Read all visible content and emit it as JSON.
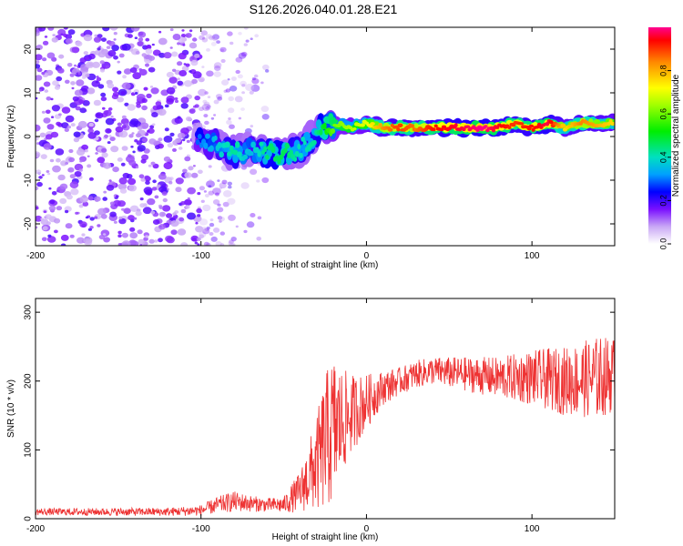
{
  "figure": {
    "title": "S126.2026.040.01.28.E21"
  },
  "chart_data": [
    {
      "type": "heatmap",
      "name": "spectrogram",
      "xlabel": "Height of straight line (km)",
      "ylabel": "Frequency (Hz)",
      "xlim": [
        -200,
        150
      ],
      "ylim": [
        -25,
        25
      ],
      "x_ticks": [
        -200,
        -100,
        0,
        100
      ],
      "x_tick_labels": [
        "-200",
        "-100",
        "0",
        "100"
      ],
      "y_ticks": [
        20,
        10,
        0,
        -10,
        -20
      ],
      "y_tick_labels": [
        "20",
        "10",
        "0",
        "-10",
        "-20"
      ],
      "colorbar": {
        "label": "Normalized spectral amplitude",
        "range": [
          0,
          1
        ],
        "ticks": [
          0.0,
          0.2,
          0.4,
          0.6,
          0.8
        ],
        "tick_labels": [
          "0.0",
          "0.2",
          "0.4",
          "0.6",
          "0.8"
        ]
      },
      "noise_region": {
        "x_range": [
          -200,
          -55
        ],
        "amplitude": [
          0.05,
          0.2
        ]
      },
      "ridge": [
        {
          "x": -100,
          "y": -1,
          "a": 0.25
        },
        {
          "x": -90,
          "y": -2,
          "a": 0.32
        },
        {
          "x": -80,
          "y": -4,
          "a": 0.38
        },
        {
          "x": -70,
          "y": -3,
          "a": 0.3
        },
        {
          "x": -60,
          "y": -4,
          "a": 0.4
        },
        {
          "x": -50,
          "y": -4,
          "a": 0.42
        },
        {
          "x": -40,
          "y": -3,
          "a": 0.35
        },
        {
          "x": -30,
          "y": 1,
          "a": 0.38
        },
        {
          "x": -20,
          "y": 3,
          "a": 0.55
        },
        {
          "x": -10,
          "y": 2,
          "a": 0.6
        },
        {
          "x": 0,
          "y": 3,
          "a": 0.65
        },
        {
          "x": 10,
          "y": 2,
          "a": 0.78
        },
        {
          "x": 20,
          "y": 2,
          "a": 0.85
        },
        {
          "x": 30,
          "y": 2,
          "a": 0.8
        },
        {
          "x": 40,
          "y": 2,
          "a": 0.88
        },
        {
          "x": 50,
          "y": 2,
          "a": 0.9
        },
        {
          "x": 60,
          "y": 2,
          "a": 0.92
        },
        {
          "x": 70,
          "y": 2,
          "a": 0.95
        },
        {
          "x": 80,
          "y": 2,
          "a": 0.9
        },
        {
          "x": 90,
          "y": 3,
          "a": 0.85
        },
        {
          "x": 100,
          "y": 2,
          "a": 0.88
        },
        {
          "x": 110,
          "y": 3,
          "a": 0.92
        },
        {
          "x": 120,
          "y": 2,
          "a": 0.7
        },
        {
          "x": 130,
          "y": 3,
          "a": 0.8
        },
        {
          "x": 140,
          "y": 3,
          "a": 0.75
        },
        {
          "x": 150,
          "y": 3,
          "a": 0.7
        }
      ]
    },
    {
      "type": "line",
      "name": "snr",
      "xlabel": "Height of straight line (km)",
      "ylabel": "SNR (10 * v/v)",
      "xlim": [
        -200,
        150
      ],
      "ylim": [
        0,
        320
      ],
      "x_ticks": [
        -200,
        -100,
        0,
        100
      ],
      "x_tick_labels": [
        "-200",
        "-100",
        "0",
        "100"
      ],
      "y_ticks": [
        0,
        100,
        200,
        300
      ],
      "y_tick_labels": [
        "0",
        "100",
        "200",
        "300"
      ],
      "color": "#ee3333",
      "envelope": {
        "x": [
          -200,
          -120,
          -100,
          -90,
          -80,
          -70,
          -60,
          -50,
          -40,
          -30,
          -25,
          -20,
          -15,
          -10,
          -5,
          0,
          10,
          20,
          30,
          40,
          60,
          80,
          100,
          120,
          140,
          150
        ],
        "mean": [
          10,
          10,
          12,
          20,
          25,
          22,
          20,
          20,
          40,
          80,
          110,
          130,
          140,
          150,
          160,
          170,
          190,
          200,
          210,
          215,
          210,
          205,
          205,
          200,
          205,
          210
        ],
        "spread": [
          5,
          6,
          8,
          12,
          15,
          12,
          10,
          12,
          30,
          70,
          100,
          110,
          80,
          60,
          50,
          40,
          25,
          20,
          20,
          20,
          25,
          30,
          40,
          50,
          60,
          55
        ]
      }
    }
  ]
}
